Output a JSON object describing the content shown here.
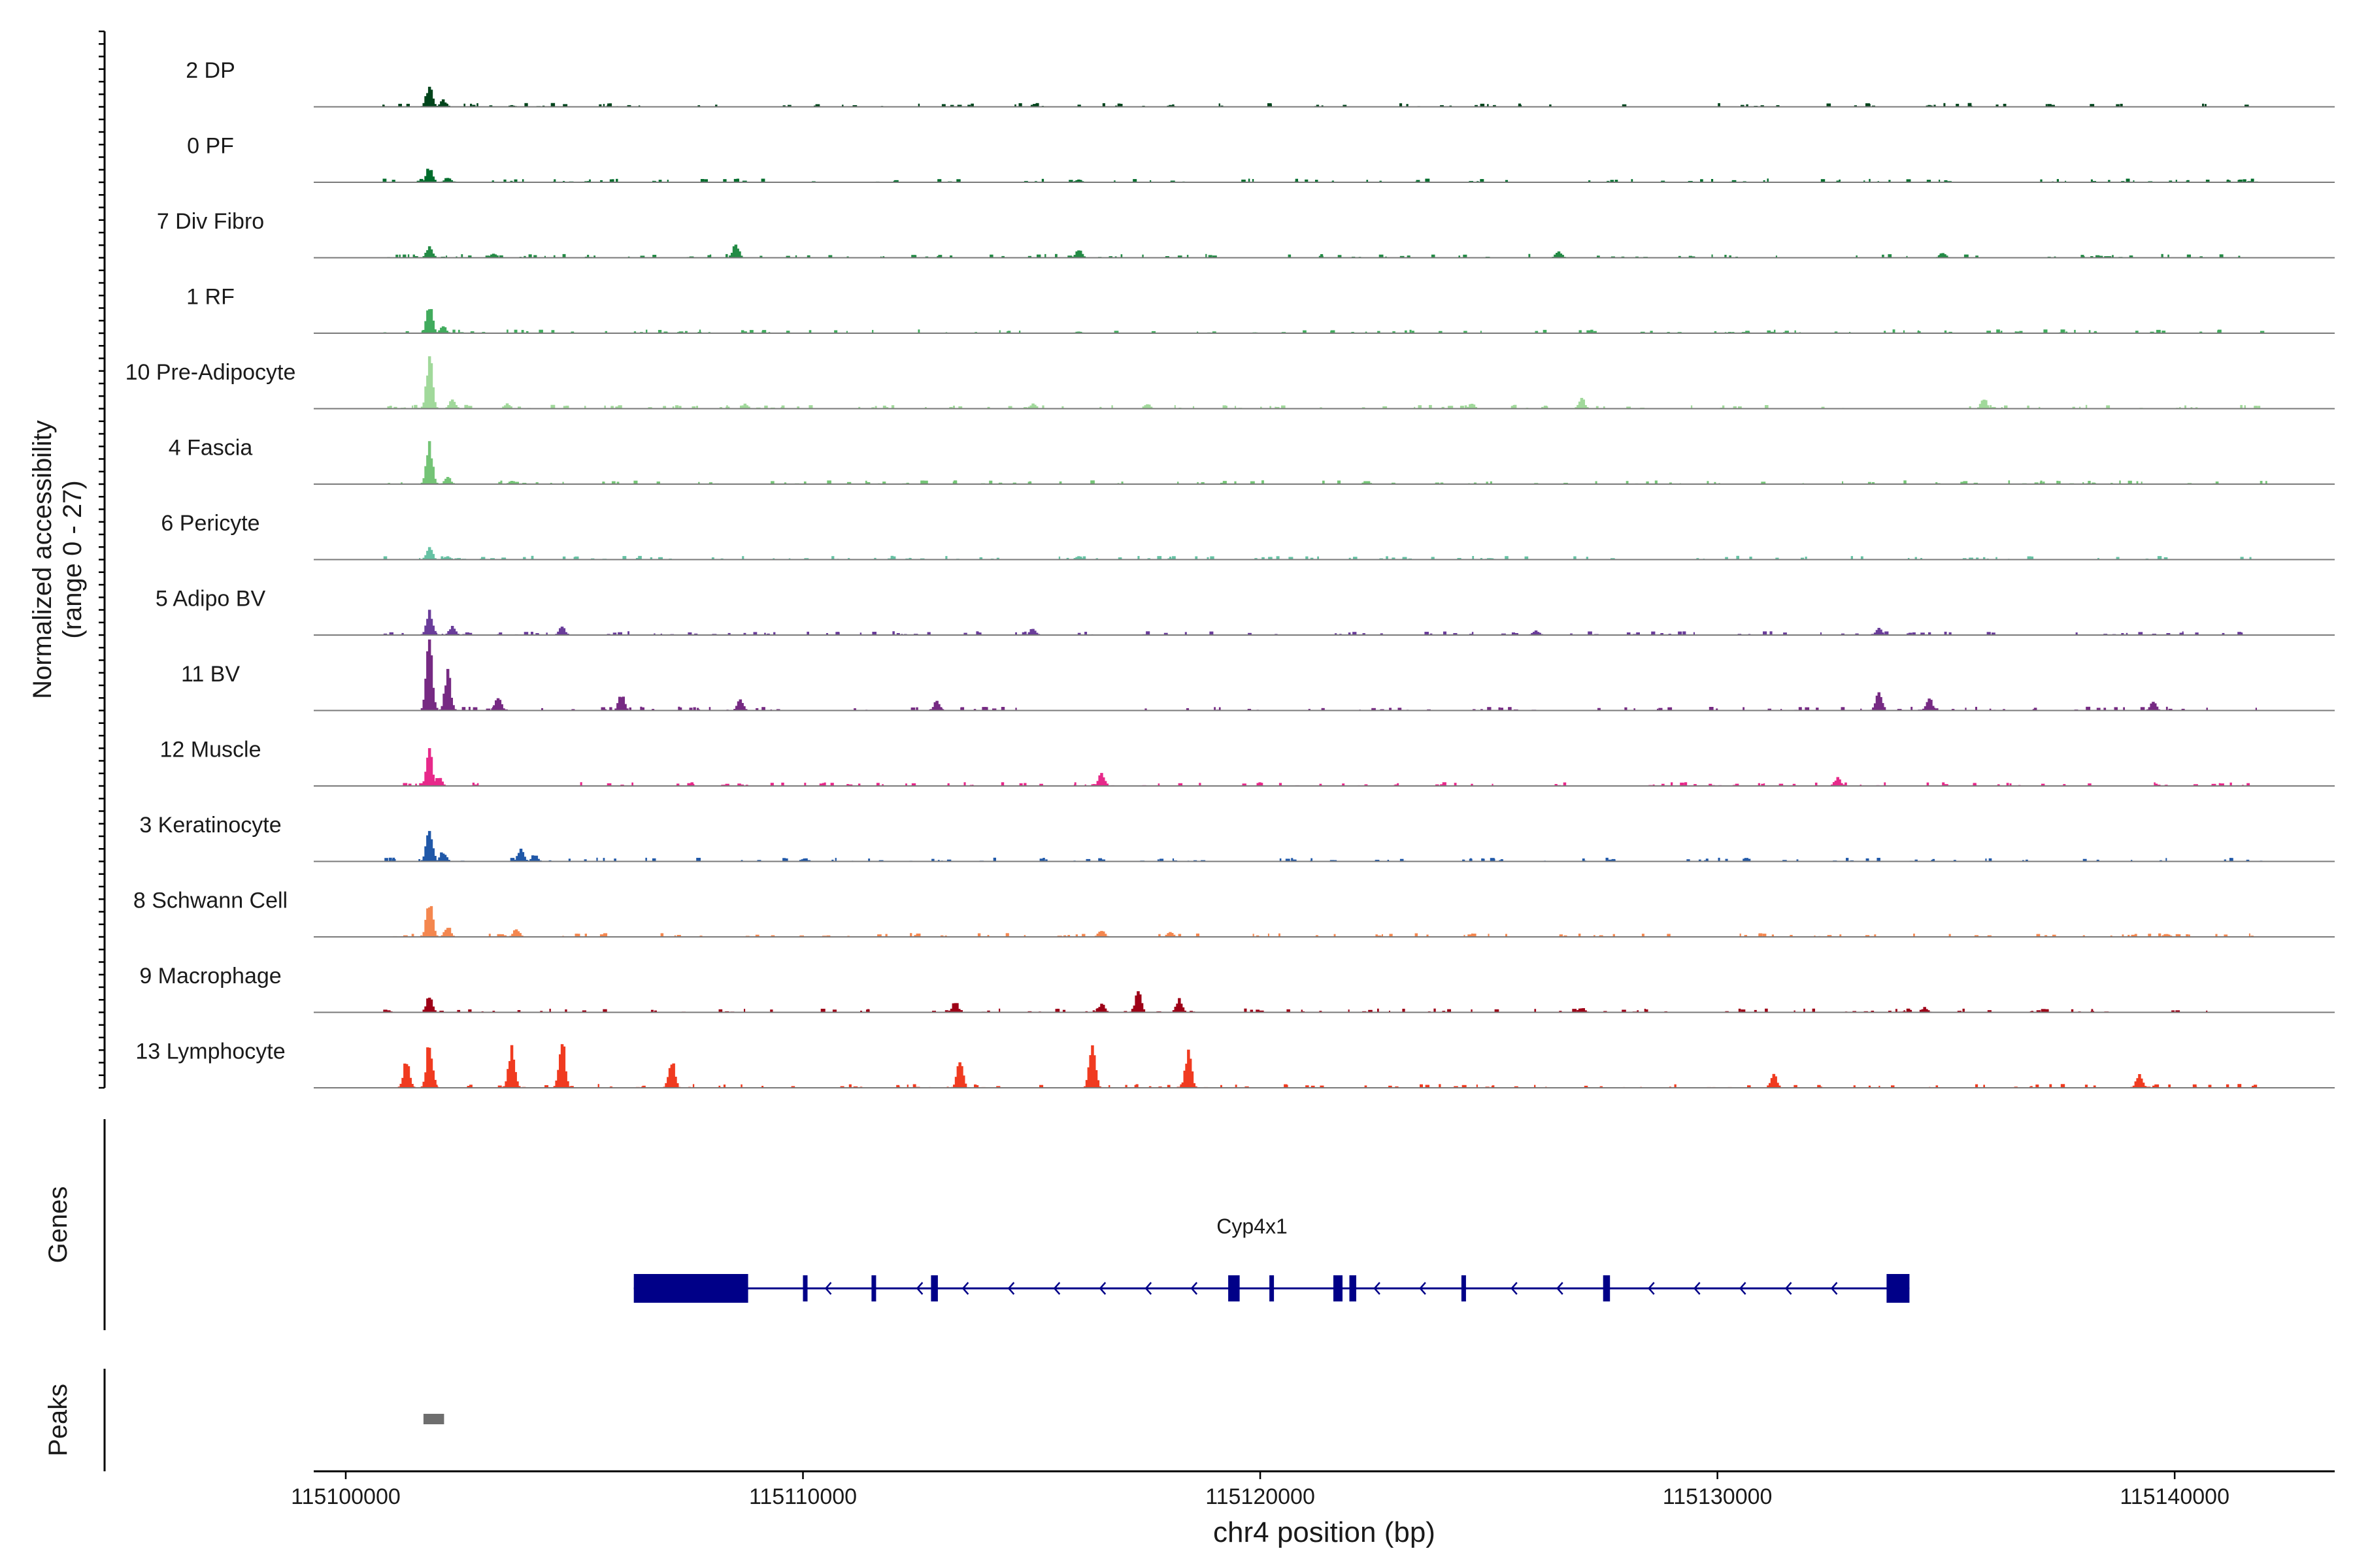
{
  "chart_data": {
    "type": "area",
    "title": "",
    "xlabel": "chr4 position (bp)",
    "ylabel": "Normalized accessibility",
    "ylabel_range": "(range 0 - 27)",
    "ylim": [
      0,
      27
    ],
    "xlim": [
      115099300,
      115143500
    ],
    "x_ticks": [
      115100000,
      115110000,
      115120000,
      115130000,
      115140000
    ],
    "x_tick_labels": [
      "115100000",
      "115110000",
      "115120000",
      "115130000",
      "115140000"
    ],
    "series": [
      {
        "name": "2 DP",
        "color": "#00441b",
        "peaks": [
          [
            115101800,
            13
          ],
          [
            115102100,
            4
          ],
          [
            115103600,
            1
          ],
          [
            115118000,
            1
          ],
          [
            115134600,
            1
          ]
        ]
      },
      {
        "name": "0 PF",
        "color": "#006d2c",
        "peaks": [
          [
            115101800,
            9
          ],
          [
            115102200,
            3
          ],
          [
            115116000,
            1.5
          ]
        ]
      },
      {
        "name": "7 Div Fibro",
        "color": "#238b45",
        "peaks": [
          [
            115101800,
            7
          ],
          [
            115103200,
            3
          ],
          [
            115108500,
            8
          ],
          [
            115116000,
            5
          ],
          [
            115126500,
            4
          ],
          [
            115134900,
            3
          ]
        ]
      },
      {
        "name": "1 RF",
        "color": "#41ab5d",
        "peaks": [
          [
            115101800,
            16
          ],
          [
            115102100,
            4
          ],
          [
            115116000,
            1
          ]
        ]
      },
      {
        "name": "10 Pre-Adipocyte",
        "color": "#a1d99b",
        "peaks": [
          [
            115101800,
            30
          ],
          [
            115102300,
            5
          ],
          [
            115103500,
            3
          ],
          [
            115108700,
            3
          ],
          [
            115115000,
            3
          ],
          [
            115117500,
            3
          ],
          [
            115124600,
            3
          ],
          [
            115127000,
            6
          ],
          [
            115135800,
            6
          ]
        ]
      },
      {
        "name": "4 Fascia",
        "color": "#74c476",
        "peaks": [
          [
            115101800,
            24
          ],
          [
            115102200,
            4
          ],
          [
            115103600,
            2
          ],
          [
            115122300,
            2
          ]
        ]
      },
      {
        "name": "6 Pericyte",
        "color": "#66c2a4",
        "peaks": [
          [
            115101800,
            7
          ],
          [
            115102200,
            2
          ],
          [
            115116000,
            2
          ],
          [
            115125000,
            1
          ]
        ]
      },
      {
        "name": "5 Adipo BV",
        "color": "#6a3d9a",
        "peaks": [
          [
            115101800,
            14
          ],
          [
            115102300,
            5
          ],
          [
            115104700,
            5
          ],
          [
            115115000,
            4
          ],
          [
            115126000,
            3
          ],
          [
            115133500,
            4
          ]
        ]
      },
      {
        "name": "11 BV",
        "color": "#762a83",
        "peaks": [
          [
            115101800,
            40
          ],
          [
            115102200,
            22
          ],
          [
            115103300,
            8
          ],
          [
            115106000,
            9
          ],
          [
            115108600,
            6
          ],
          [
            115112900,
            6
          ],
          [
            115133500,
            12
          ],
          [
            115134600,
            7
          ],
          [
            115139500,
            5
          ]
        ]
      },
      {
        "name": "12 Muscle",
        "color": "#e7298a",
        "peaks": [
          [
            115101800,
            20
          ],
          [
            115102000,
            6
          ],
          [
            115116500,
            8
          ],
          [
            115132600,
            5
          ]
        ]
      },
      {
        "name": "3 Keratinocyte",
        "color": "#2058a8",
        "peaks": [
          [
            115101800,
            20
          ],
          [
            115102100,
            6
          ],
          [
            115103800,
            7
          ],
          [
            115104100,
            4
          ],
          [
            115110000,
            2
          ]
        ]
      },
      {
        "name": "8 Schwann Cell",
        "color": "#f4874f",
        "peaks": [
          [
            115101800,
            22
          ],
          [
            115102200,
            6
          ],
          [
            115103700,
            5
          ],
          [
            115116500,
            4
          ],
          [
            115118000,
            3
          ],
          [
            115139800,
            2
          ]
        ]
      },
      {
        "name": "9 Macrophage",
        "color": "#9e0117",
        "peaks": [
          [
            115101800,
            9
          ],
          [
            115113300,
            6
          ],
          [
            115116500,
            5
          ],
          [
            115117300,
            12
          ],
          [
            115118200,
            8
          ],
          [
            115127000,
            3
          ],
          [
            115134500,
            3
          ]
        ]
      },
      {
        "name": "13 Lymphocyte",
        "color": "#f03b20",
        "peaks": [
          [
            115101300,
            17
          ],
          [
            115101800,
            27
          ],
          [
            115103600,
            25
          ],
          [
            115104700,
            27
          ],
          [
            115107100,
            17
          ],
          [
            115113400,
            15
          ],
          [
            115116300,
            27
          ],
          [
            115118400,
            22
          ],
          [
            115131200,
            8
          ],
          [
            115139200,
            8
          ]
        ]
      }
    ],
    "genes": {
      "label": "Genes",
      "gene_name": "Cyp4x1",
      "strand": "-",
      "start": 115106300,
      "end": 115134200,
      "exons": [
        [
          115106300,
          115108800
        ],
        [
          115110000,
          115110100
        ],
        [
          115111500,
          115111600
        ],
        [
          115112800,
          115112950
        ],
        [
          115119300,
          115119550
        ],
        [
          115120200,
          115120300
        ],
        [
          115121600,
          115121800
        ],
        [
          115121950,
          115122100
        ],
        [
          115124400,
          115124500
        ],
        [
          115127500,
          115127650
        ],
        [
          115133700,
          115134200
        ]
      ]
    },
    "peaks_track": {
      "label": "Peaks",
      "regions": [
        [
          115101700,
          115102150
        ]
      ]
    }
  }
}
